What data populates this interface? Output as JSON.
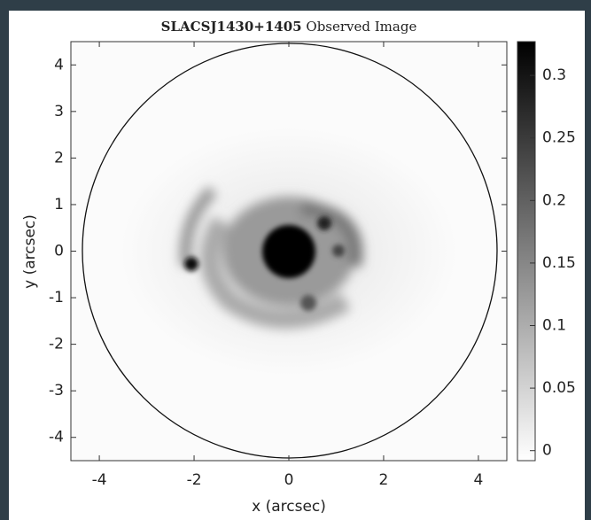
{
  "chart_data": {
    "type": "image",
    "title": [
      "SLACSJ1430+1405",
      "Observed Image"
    ],
    "x_label": "x (arcsec)",
    "y_label": "y (arcsec)",
    "xlim": [
      -4.6,
      4.6
    ],
    "xticks": [
      -4,
      -2,
      0,
      2,
      4
    ],
    "ylim": [
      -4.5,
      4.5
    ],
    "yticks": [
      -4,
      -3,
      -2,
      -1,
      0,
      1,
      2,
      3,
      4
    ],
    "colorbar": {
      "lim": [
        -0.008,
        0.327
      ],
      "ticks": [
        0,
        0.05,
        0.1,
        0.15,
        0.2,
        0.25,
        0.3
      ],
      "colors": [
        "#ffffff",
        "#000000"
      ]
    }
  }
}
